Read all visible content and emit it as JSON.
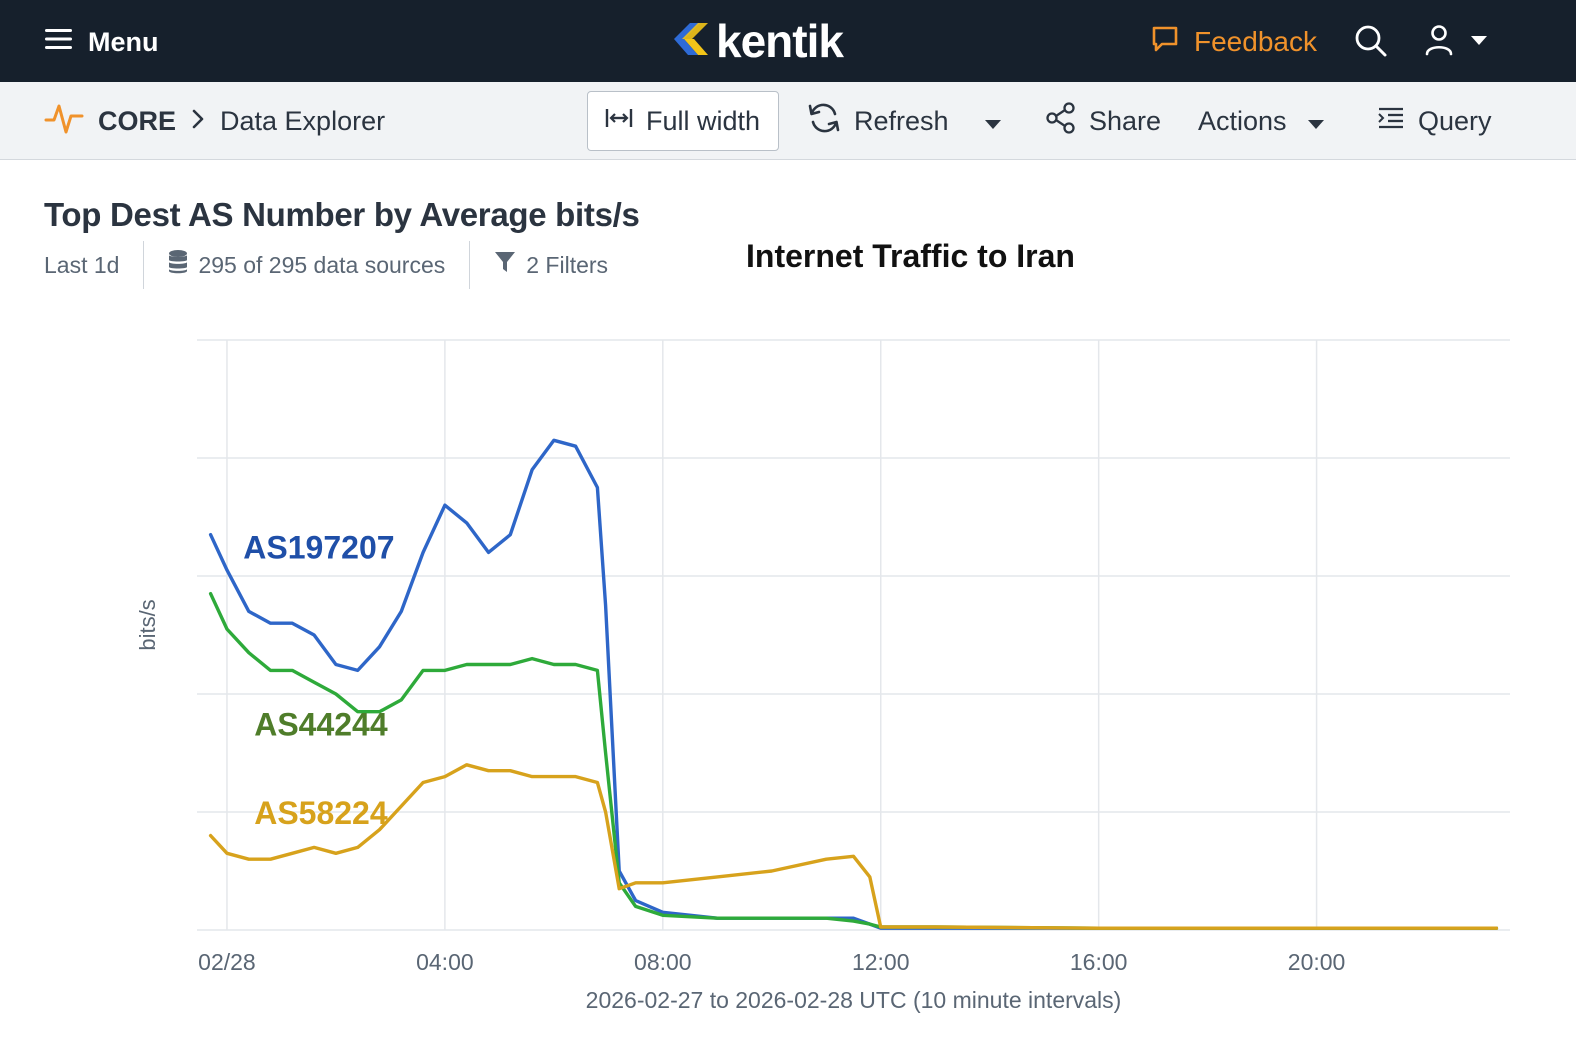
{
  "topbar": {
    "menu_label": "Menu",
    "logo_text": "kentik",
    "feedback_label": "Feedback"
  },
  "toolbar": {
    "breadcrumb_root": "CORE",
    "breadcrumb_page": "Data Explorer",
    "full_width_label": "Full width",
    "refresh_label": "Refresh",
    "share_label": "Share",
    "actions_label": "Actions",
    "query_label": "Query"
  },
  "panel": {
    "title": "Top Dest AS Number by Average bits/s",
    "time_range": "Last 1d",
    "data_sources": "295 of 295 data sources",
    "filters": "2 Filters",
    "annotation_title": "Internet Traffic to Iran"
  },
  "colors": {
    "topbar_bg": "#16202c",
    "accent_orange": "#f0922b",
    "as197207": "#2e66c8",
    "as44244": "#2eaa3a",
    "as58224": "#d7a21c"
  },
  "chart_data": {
    "type": "line",
    "ylabel": "bits/s",
    "xlabel": "2026-02-27 to 2026-02-28 UTC (10 minute intervals)",
    "x_ticks": [
      "02/28",
      "04:00",
      "08:00",
      "12:00",
      "16:00",
      "20:00"
    ],
    "x_hours": [
      0,
      4,
      8,
      12,
      16,
      20
    ],
    "xlim": [
      -0.55,
      23.55
    ],
    "ylim": [
      0,
      100
    ],
    "y_gridlines": [
      0,
      20,
      40,
      60,
      80,
      100
    ],
    "y_tick_labels_shown": false,
    "grid": true,
    "x": [
      -0.3,
      0.0,
      0.4,
      0.8,
      1.2,
      1.6,
      2.0,
      2.4,
      2.8,
      3.2,
      3.6,
      4.0,
      4.4,
      4.8,
      5.2,
      5.6,
      6.0,
      6.4,
      6.8,
      6.95,
      7.2,
      7.5,
      8.0,
      9.0,
      10.0,
      11.0,
      11.5,
      11.8,
      12.0,
      13.0,
      16.0,
      20.0,
      23.3
    ],
    "series": [
      {
        "name": "AS197207",
        "color": "#2e66c8",
        "values": [
          67,
          61,
          54,
          52,
          52,
          50,
          45,
          44,
          48,
          54,
          64,
          72,
          69,
          64,
          67,
          78,
          83,
          82,
          75,
          55,
          10,
          5,
          3,
          2,
          2,
          2,
          2,
          1,
          0.3,
          0.3,
          0.3,
          0.3,
          0.3
        ]
      },
      {
        "name": "AS44244",
        "color": "#2eaa3a",
        "values": [
          57,
          51,
          47,
          44,
          44,
          42,
          40,
          37,
          37,
          39,
          44,
          44,
          45,
          45,
          45,
          46,
          45,
          45,
          44,
          30,
          8,
          4,
          2.5,
          2,
          2,
          2,
          1.5,
          1,
          0.5,
          0.5,
          0.3,
          0.3,
          0.3
        ]
      },
      {
        "name": "AS58224",
        "color": "#d7a21c",
        "values": [
          16,
          13,
          12,
          12,
          13,
          14,
          13,
          14,
          17,
          21,
          25,
          26,
          28,
          27,
          27,
          26,
          26,
          26,
          25,
          20,
          7,
          8,
          8,
          9,
          10,
          12,
          12.5,
          9,
          0.5,
          0.5,
          0.3,
          0.3,
          0.3
        ]
      }
    ]
  }
}
